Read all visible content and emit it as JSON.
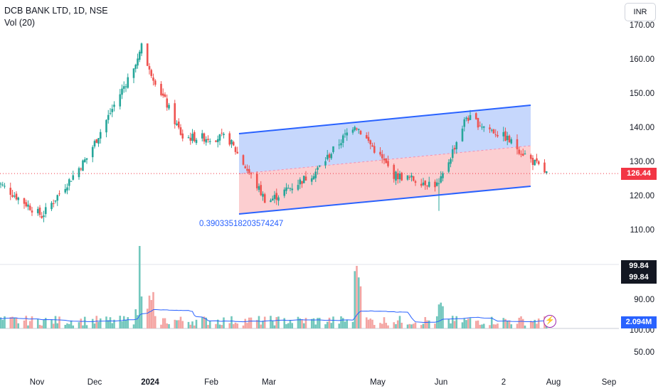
{
  "header": {
    "title": "DCB BANK LTD, 1D, NSE",
    "volume_label": "Vol (20)",
    "currency": "INR"
  },
  "price_tags": {
    "last_price": "126.44",
    "vol_value_1": "99.84",
    "vol_value_2": "99.84",
    "current_volume": "2.094M"
  },
  "annotation_text": "0.39033518203574247",
  "colors": {
    "up": "#26a69a",
    "down": "#ef5350",
    "volume_up": "#72c7bd",
    "volume_down": "#f4a5a3",
    "channel_line": "#2962ff",
    "channel_upper_fill": "#bcd0fb",
    "channel_lower_fill": "#fbc5c8",
    "ma_line": "#2962ff"
  },
  "chart_data": [
    {
      "type": "candlestick",
      "title": "DCB BANK LTD, 1D, NSE",
      "ylim": [
        105,
        172
      ],
      "y_ticks": [
        "170.00",
        "160.00",
        "150.00",
        "140.00",
        "130.00",
        "120.00",
        "110.00"
      ],
      "x_tick_labels": [
        "Nov",
        "Dec",
        "2024",
        "Feb",
        "Mar",
        "May",
        "Jun",
        "2",
        "Aug",
        "Sep"
      ],
      "last_price": 126.44,
      "close_path_by_month": [
        {
          "period": "late Oct",
          "close": 125
        },
        {
          "period": "Nov",
          "close": 114
        },
        {
          "period": "Dec",
          "close": 131
        },
        {
          "period": "early Jan",
          "close": 162
        },
        {
          "period": "late Jan",
          "close": 137
        },
        {
          "period": "mid Feb",
          "close": 137
        },
        {
          "period": "Mar",
          "close": 118
        },
        {
          "period": "Apr",
          "close": 127
        },
        {
          "period": "late Apr",
          "close": 141
        },
        {
          "period": "May",
          "close": 126
        },
        {
          "period": "early Jun",
          "close": 123
        },
        {
          "period": "mid Jun",
          "close": 143
        },
        {
          "period": "early Jul",
          "close": 137
        },
        {
          "period": "late Jul",
          "close": 126.44
        }
      ],
      "extremes": {
        "high": 163,
        "low": 110
      }
    },
    {
      "type": "bar",
      "title": "Vol (20)",
      "y_ticks": [
        "90.00",
        "100.00",
        "50.00"
      ],
      "series": [
        {
          "name": "Vol (20)",
          "note": "volume bars with 20-period moving average"
        }
      ],
      "current_value": "2.094M"
    }
  ]
}
